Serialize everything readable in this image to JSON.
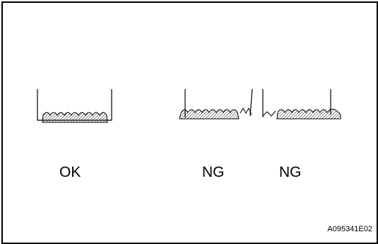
{
  "labels": {
    "ok": "OK",
    "ng_left": "NG",
    "ng_right": "NG"
  },
  "figure_code": "A095341E02"
}
